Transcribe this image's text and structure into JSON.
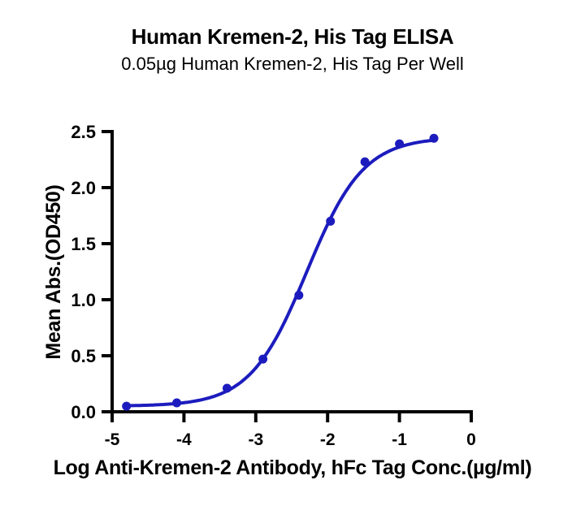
{
  "chart_data": {
    "type": "scatter",
    "title": "Human Kremen-2, His Tag ELISA",
    "subtitle": "0.05µg Human Kremen-2, His Tag Per Well",
    "xlabel": "Log Anti-Kremen-2 Antibody, hFc Tag Conc.(µg/ml)",
    "ylabel": "Mean Abs.(OD450)",
    "xlim": [
      -5,
      0
    ],
    "ylim": [
      0,
      2.5
    ],
    "x_ticks": {
      "values": [
        -5,
        -4,
        -3,
        -2,
        -1,
        0
      ],
      "labels": [
        "-5",
        "-4",
        "-3",
        "-2",
        "-1",
        "0"
      ]
    },
    "y_ticks": {
      "values": [
        0,
        0.5,
        1,
        1.5,
        2,
        2.5
      ],
      "labels": [
        "0.0",
        "0.5",
        "1.0",
        "1.5",
        "2.0",
        "2.5"
      ]
    },
    "grid": false,
    "legend": "none",
    "series": [
      {
        "color": "#1C1CBE",
        "marker": "circle",
        "points": [
          {
            "x": -4.8,
            "y": 0.05
          },
          {
            "x": -4.1,
            "y": 0.08
          },
          {
            "x": -3.4,
            "y": 0.21
          },
          {
            "x": -2.9,
            "y": 0.47
          },
          {
            "x": -2.4,
            "y": 1.04
          },
          {
            "x": -1.96,
            "y": 1.7
          },
          {
            "x": -1.48,
            "y": 2.23
          },
          {
            "x": -1.0,
            "y": 2.39
          },
          {
            "x": -0.52,
            "y": 2.44
          }
        ]
      }
    ],
    "fit_curve": {
      "model": "4PL",
      "bottom": 0.05,
      "top": 2.45,
      "logEC50": -2.29,
      "hillslope": 1.1,
      "x_start": -4.8,
      "x_end": -0.52
    }
  },
  "colors": {
    "curve": "#1C1CBE",
    "axis": "#000000",
    "text": "#000000",
    "background": "#FFFFFF"
  }
}
